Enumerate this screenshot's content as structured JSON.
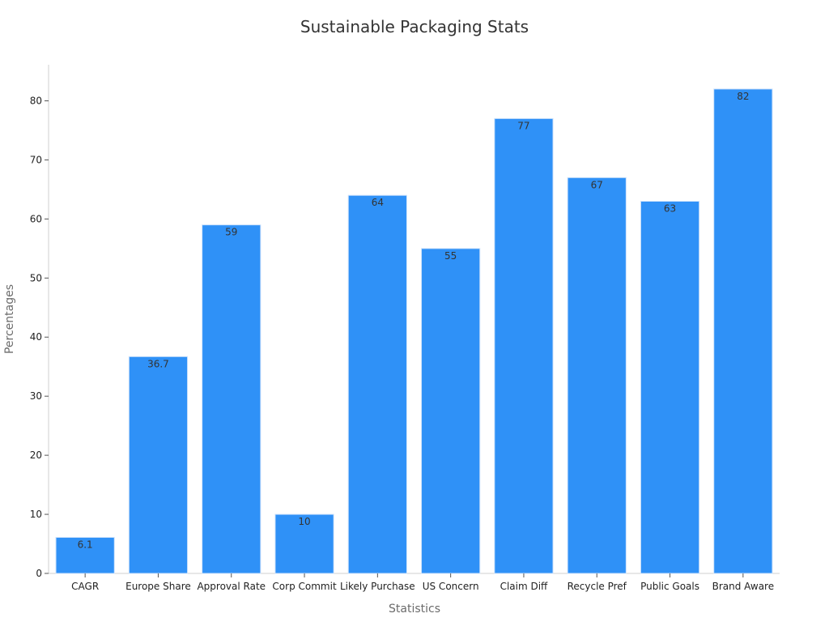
{
  "chart_data": {
    "type": "bar",
    "title": "Sustainable Packaging Stats",
    "xlabel": "Statistics",
    "ylabel": "Percentages",
    "categories": [
      "CAGR",
      "Europe Share",
      "Approval Rate",
      "Corp Commit",
      "Likely Purchase",
      "US Concern",
      "Claim Diff",
      "Recycle Pref",
      "Public Goals",
      "Brand Aware"
    ],
    "values": [
      6.1,
      36.7,
      59,
      10,
      64,
      55,
      77,
      67,
      63,
      82
    ],
    "data_labels": [
      "6.1",
      "36.7",
      "59",
      "10",
      "64",
      "55",
      "77",
      "67",
      "63",
      "82"
    ],
    "yticks": [
      0,
      10,
      20,
      30,
      40,
      50,
      60,
      70,
      80
    ],
    "ylim": [
      0,
      86.1
    ],
    "grid": false,
    "legend": "none",
    "colors": {
      "bar": "#2f91f7",
      "bar_edge": "#cfe3fb",
      "axis": "#cfcfcf"
    }
  }
}
